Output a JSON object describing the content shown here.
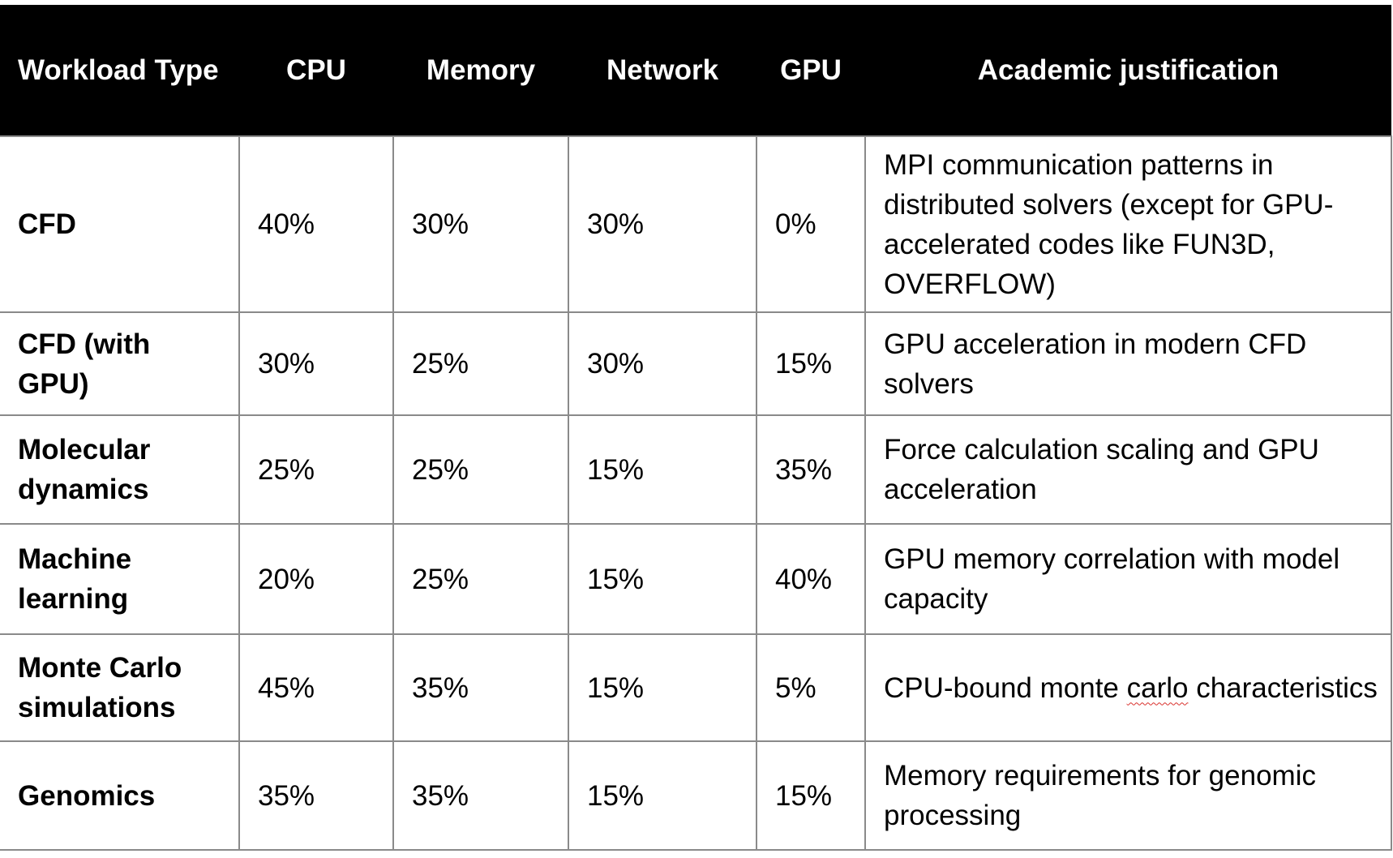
{
  "table": {
    "headers": [
      "Workload Type",
      "CPU",
      "Memory",
      "Network",
      "GPU",
      "Academic justification"
    ],
    "rows": [
      {
        "type": "CFD",
        "cpu": "40%",
        "memory": "30%",
        "network": "30%",
        "gpu": "0%",
        "justification": "MPI communication patterns in distributed solvers (except for GPU-accelerated codes like FUN3D, OVERFLOW)"
      },
      {
        "type": "CFD (with GPU)",
        "cpu": "30%",
        "memory": "25%",
        "network": "30%",
        "gpu": "15%",
        "justification": "GPU acceleration in modern CFD solvers"
      },
      {
        "type": "Molecular dynamics",
        "cpu": "25%",
        "memory": "25%",
        "network": "15%",
        "gpu": "35%",
        "justification": "Force calculation scaling and GPU acceleration"
      },
      {
        "type": "Machine learning",
        "cpu": "20%",
        "memory": "25%",
        "network": "15%",
        "gpu": "40%",
        "justification": "GPU memory correlation with model capacity"
      },
      {
        "type": "Monte Carlo simulations",
        "cpu": "45%",
        "memory": "35%",
        "network": "15%",
        "gpu": "5%",
        "justification_parts": [
          "CPU-bound monte ",
          "carlo",
          " characteristics"
        ]
      },
      {
        "type": "Genomics",
        "cpu": "35%",
        "memory": "35%",
        "network": "15%",
        "gpu": "15%",
        "justification": "Memory requirements for genomic processing"
      }
    ]
  },
  "colors": {
    "header_bg": "#000000",
    "header_text": "#ffffff",
    "grid": "#8a8a8a",
    "spellcheck_underline": "#d9302c"
  }
}
